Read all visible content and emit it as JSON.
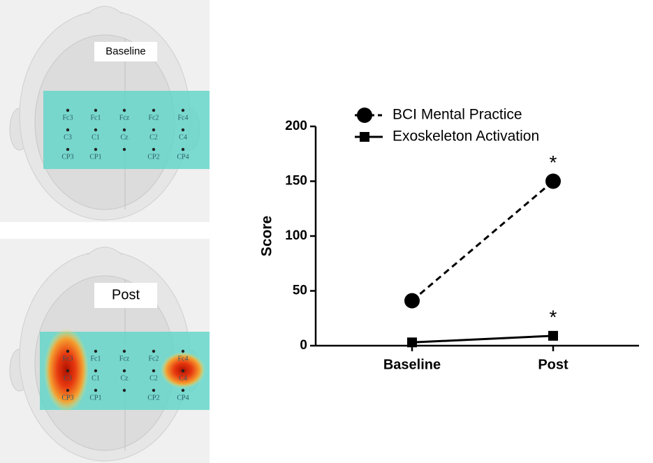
{
  "brain_maps": [
    {
      "label": "Baseline",
      "electrodes": [
        "Fc3",
        "Fc1",
        "Fcz",
        "Fc2",
        "Fc4",
        "C3",
        "C1",
        "Cz",
        "C2",
        "C4",
        "CP3",
        "CP1",
        "CP2",
        "CP4"
      ]
    },
    {
      "label": "Post",
      "electrodes": [
        "Fc3",
        "Fc1",
        "Fcz",
        "Fc2",
        "Fc4",
        "C3",
        "C1",
        "Cz",
        "C2",
        "C4",
        "CP3",
        "CP1",
        "CP2",
        "CP4"
      ]
    }
  ],
  "chart_data": {
    "type": "line",
    "ylabel": "Score",
    "categories": [
      "Baseline",
      "Post"
    ],
    "series": [
      {
        "name": "BCI Mental Practice",
        "color": "#000000",
        "values": [
          41,
          150
        ],
        "dashed": true,
        "marker": "circle"
      },
      {
        "name": "Exoskeleton Activation",
        "color": "#000000",
        "values": [
          3,
          9
        ],
        "dashed": false,
        "marker": "square"
      }
    ],
    "annotations": [
      "*",
      "*"
    ],
    "ylim": [
      0,
      200
    ],
    "yticks": [
      0,
      50,
      100,
      150,
      200
    ],
    "grid": false
  }
}
